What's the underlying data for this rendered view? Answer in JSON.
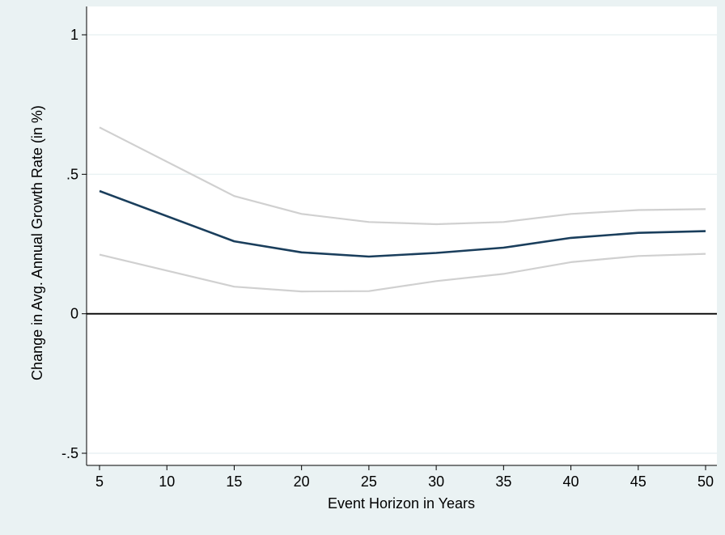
{
  "chart_data": {
    "type": "line",
    "title": "",
    "xlabel": "Event Horizon in Years",
    "ylabel": "Change in Avg. Annual Growth Rate (in %)",
    "x": [
      5,
      15,
      20,
      25,
      30,
      35,
      40,
      45,
      50
    ],
    "xticks": [
      5,
      10,
      15,
      20,
      25,
      30,
      35,
      40,
      45,
      50
    ],
    "xtick_labels": [
      "5",
      "10",
      "15",
      "20",
      "25",
      "30",
      "35",
      "40",
      "45",
      "50"
    ],
    "yticks": [
      -0.5,
      0,
      0.5,
      1
    ],
    "ytick_labels": [
      "-.5",
      "0",
      ".5",
      "1"
    ],
    "xlim": [
      5,
      50
    ],
    "ylim": [
      -0.5,
      1
    ],
    "grid": "horizontal",
    "legend": "none",
    "reference_line_y": 0,
    "series": [
      {
        "role": "estimate",
        "color": "#1a3e5c",
        "values": [
          0.44,
          0.26,
          0.22,
          0.205,
          0.218,
          0.237,
          0.272,
          0.29,
          0.296
        ]
      },
      {
        "role": "upper",
        "color": "#d0d0d0",
        "values": [
          0.668,
          0.422,
          0.358,
          0.329,
          0.321,
          0.329,
          0.358,
          0.372,
          0.375
        ]
      },
      {
        "role": "lower",
        "color": "#d0d0d0",
        "values": [
          0.212,
          0.097,
          0.08,
          0.081,
          0.117,
          0.143,
          0.185,
          0.207,
          0.215
        ]
      }
    ]
  }
}
